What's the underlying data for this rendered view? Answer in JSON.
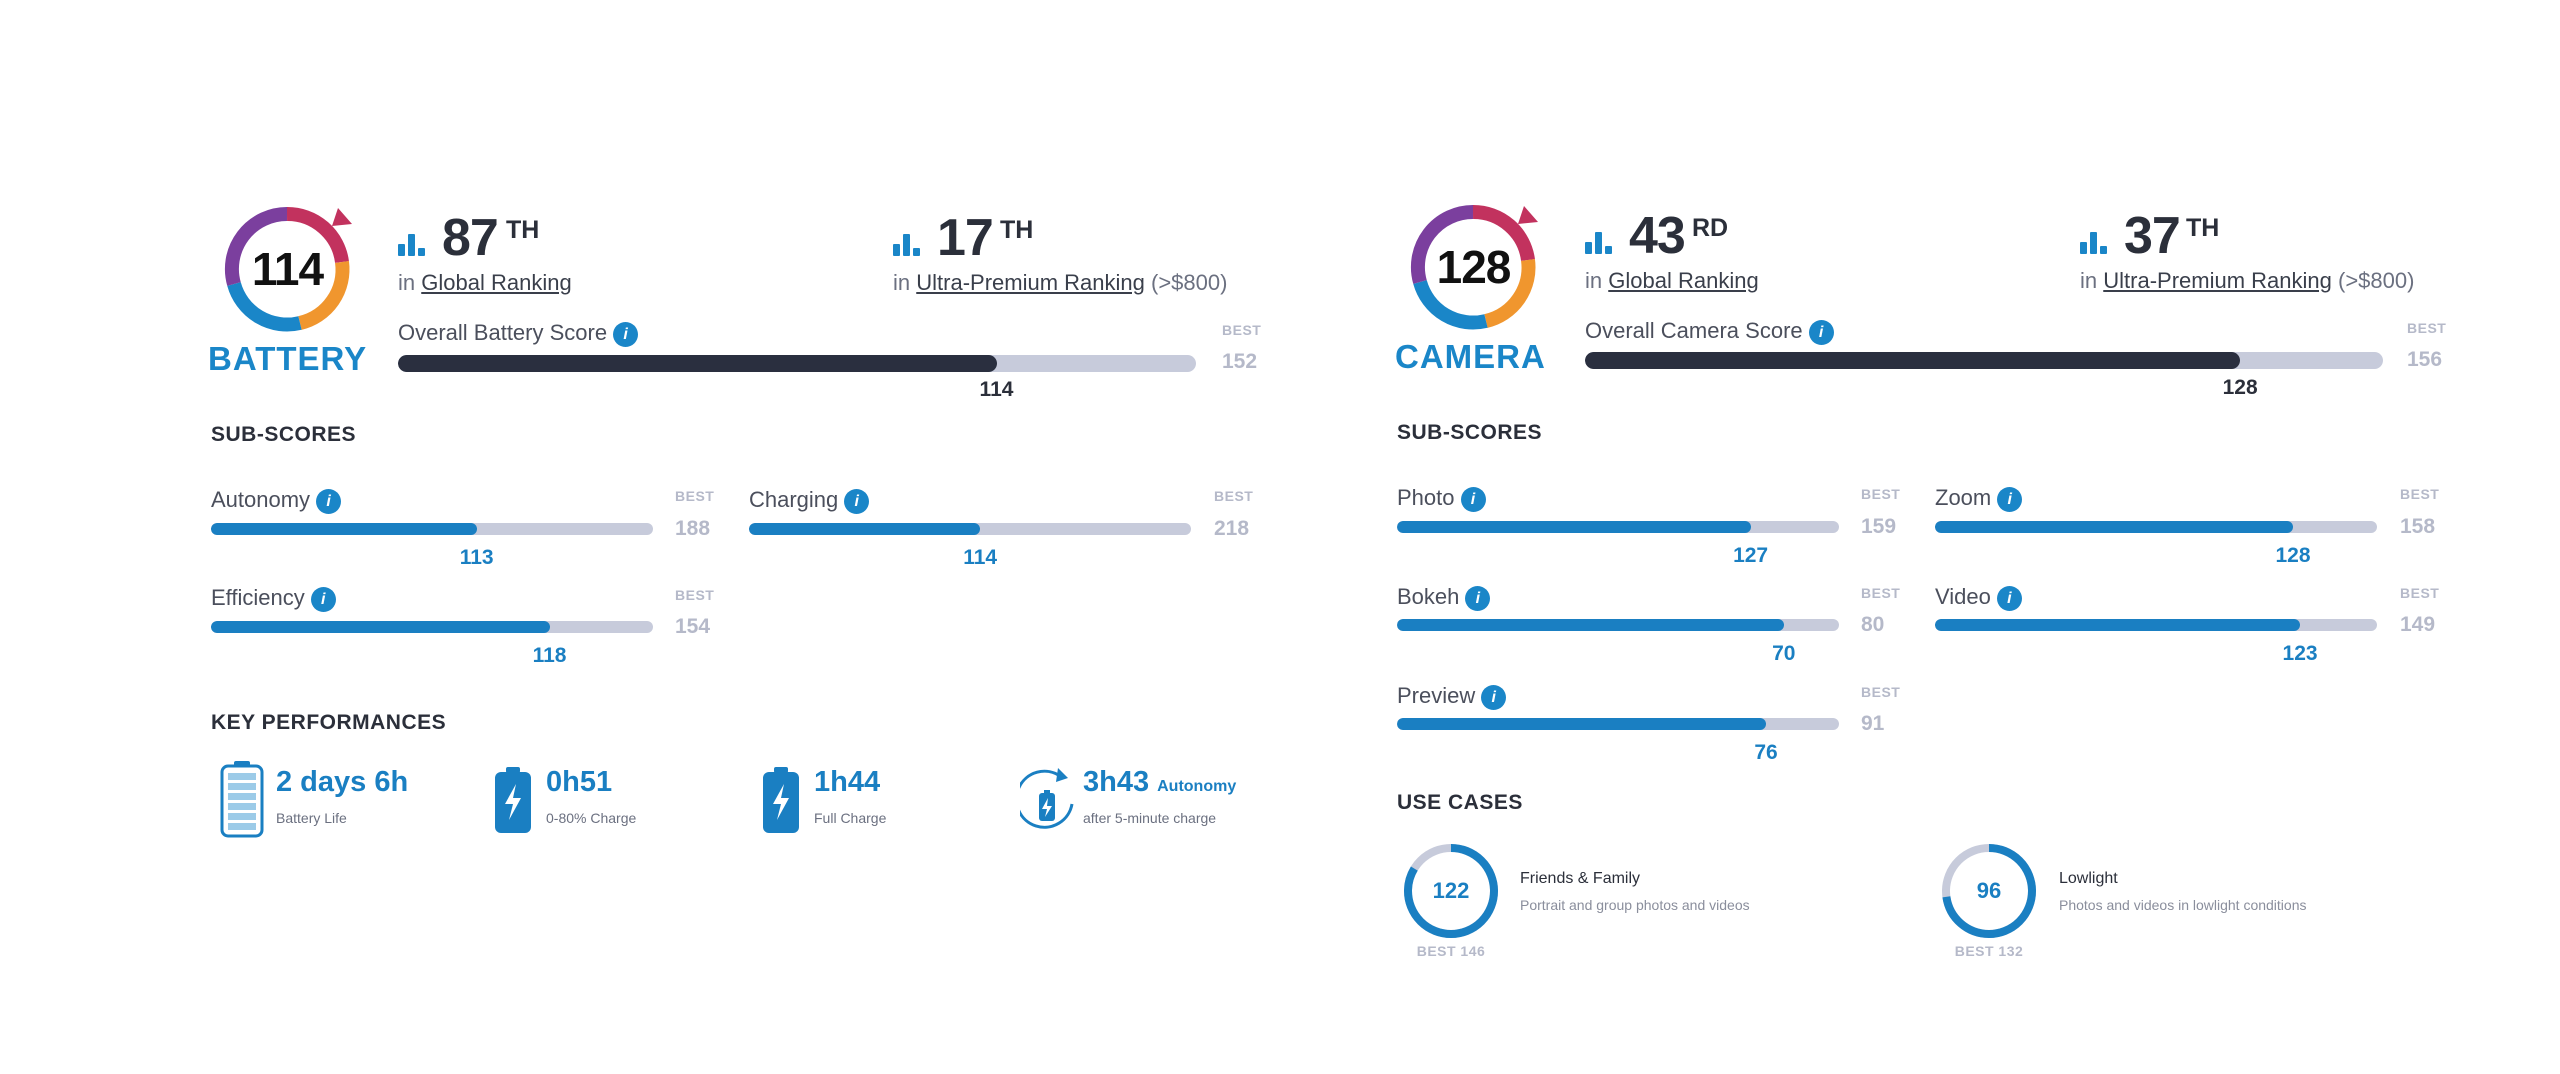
{
  "battery": {
    "score": "114",
    "label": "BATTERY",
    "global_rank": {
      "number": "87",
      "suffix": "TH",
      "in": "in",
      "link": "Global Ranking"
    },
    "premium_rank": {
      "number": "17",
      "suffix": "TH",
      "in": "in",
      "link": "Ultra-Premium Ranking",
      "extra": "(>$800)"
    },
    "overall": {
      "label": "Overall Battery Score",
      "value": "114",
      "best_label": "BEST",
      "best": "152",
      "fraction": 0.75
    },
    "subscores_title": "SUB-SCORES",
    "subscores": [
      {
        "label": "Autonomy",
        "value": "113",
        "best_label": "BEST",
        "best": "188",
        "fraction": 0.601
      },
      {
        "label": "Charging",
        "value": "114",
        "best_label": "BEST",
        "best": "218",
        "fraction": 0.523
      },
      {
        "label": "Efficiency",
        "value": "118",
        "best_label": "BEST",
        "best": "154",
        "fraction": 0.766
      }
    ],
    "key_title": "KEY PERFORMANCES",
    "key_performances": [
      {
        "value": "2 days 6h",
        "sub": "Battery Life",
        "icon": "battery-full-icon"
      },
      {
        "value": "0h51",
        "sub": "0-80% Charge",
        "icon": "battery-charging-icon"
      },
      {
        "value": "1h44",
        "sub": "Full Charge",
        "icon": "battery-charging-icon"
      },
      {
        "value": "3h43",
        "value_suffix": "Autonomy",
        "sub": "after 5-minute charge",
        "icon": "battery-refresh-icon"
      }
    ]
  },
  "camera": {
    "score": "128",
    "label": "CAMERA",
    "global_rank": {
      "number": "43",
      "suffix": "RD",
      "in": "in",
      "link": "Global Ranking"
    },
    "premium_rank": {
      "number": "37",
      "suffix": "TH",
      "in": "in",
      "link": "Ultra-Premium Ranking",
      "extra": "(>$800)"
    },
    "overall": {
      "label": "Overall Camera Score",
      "value": "128",
      "best_label": "BEST",
      "best": "156",
      "fraction": 0.821
    },
    "subscores_title": "SUB-SCORES",
    "subscores": [
      {
        "label": "Photo",
        "value": "127",
        "best_label": "BEST",
        "best": "159",
        "fraction": 0.8
      },
      {
        "label": "Zoom",
        "value": "128",
        "best_label": "BEST",
        "best": "158",
        "fraction": 0.81
      },
      {
        "label": "Bokeh",
        "value": "70",
        "best_label": "BEST",
        "best": "80",
        "fraction": 0.875
      },
      {
        "label": "Video",
        "value": "123",
        "best_label": "BEST",
        "best": "149",
        "fraction": 0.826
      },
      {
        "label": "Preview",
        "value": "76",
        "best_label": "BEST",
        "best": "91",
        "fraction": 0.835
      }
    ],
    "use_title": "USE CASES",
    "use_cases": [
      {
        "value": "122",
        "best": "BEST 146",
        "title": "Friends & Family",
        "desc": "Portrait and group photos and videos",
        "fraction": 0.836
      },
      {
        "value": "96",
        "best": "BEST 132",
        "title": "Lowlight",
        "desc": "Photos and videos in lowlight conditions",
        "fraction": 0.727
      }
    ]
  },
  "colors": {
    "accent_blue": "#1a7fc2",
    "dark_bar": "#2a2f3f",
    "track": "#c7cbdb",
    "best_gray": "#b5b9c9",
    "badge_purple": "#7b3f9e",
    "badge_orange": "#f0962e",
    "badge_magenta": "#c2325e"
  }
}
